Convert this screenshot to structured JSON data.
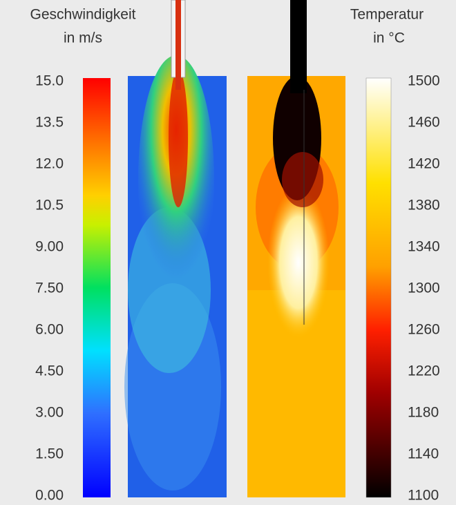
{
  "velocity_scale": {
    "title": "Geschwindigkeit",
    "unit": "in m/s",
    "ticks": [
      "15.0",
      "13.5",
      "12.0",
      "10.5",
      "9.00",
      "7.50",
      "6.00",
      "4.50",
      "3.00",
      "1.50",
      "0.00"
    ]
  },
  "temperature_scale": {
    "title": "Temperatur",
    "unit": "in °C",
    "ticks": [
      "1500",
      "1460",
      "1420",
      "1380",
      "1340",
      "1300",
      "1260",
      "1220",
      "1180",
      "1140",
      "1100"
    ]
  }
}
